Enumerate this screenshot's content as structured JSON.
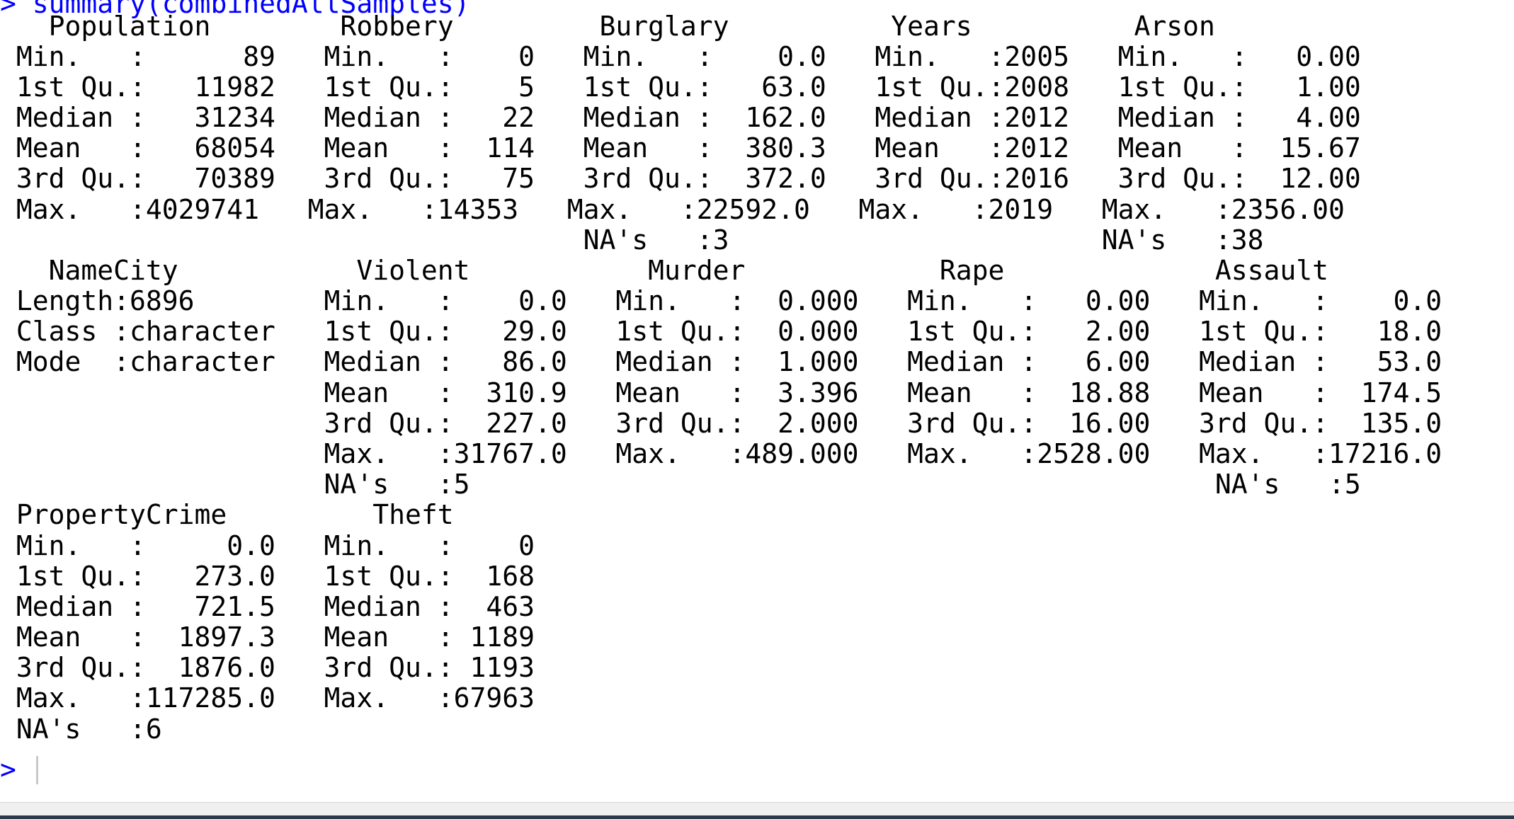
{
  "console": {
    "prompt_symbol": ">",
    "command": "summary(combinedAllSamples)",
    "output_lines": [
      "   Population        Robbery         Burglary          Years          Arson        ",
      " Min.   :      89   Min.   :    0   Min.   :    0.0   Min.   :2005   Min.   :   0.00  ",
      " 1st Qu.:   11982   1st Qu.:    5   1st Qu.:   63.0   1st Qu.:2008   1st Qu.:   1.00  ",
      " Median :   31234   Median :   22   Median :  162.0   Median :2012   Median :   4.00  ",
      " Mean   :   68054   Mean   :  114   Mean   :  380.3   Mean   :2012   Mean   :  15.67  ",
      " 3rd Qu.:   70389   3rd Qu.:   75   3rd Qu.:  372.0   3rd Qu.:2016   3rd Qu.:  12.00  ",
      " Max.   :4029741   Max.   :14353   Max.   :22592.0   Max.   :2019   Max.   :2356.00  ",
      "                                    NA's   :3                       NA's   :38       ",
      "   NameCity           Violent           Murder            Rape             Assault      ",
      " Length:6896        Min.   :    0.0   Min.   :  0.000   Min.   :   0.00   Min.   :    0.0  ",
      " Class :character   1st Qu.:   29.0   1st Qu.:  0.000   1st Qu.:   2.00   1st Qu.:   18.0  ",
      " Mode  :character   Median :   86.0   Median :  1.000   Median :   6.00   Median :   53.0  ",
      "                    Mean   :  310.9   Mean   :  3.396   Mean   :  18.88   Mean   :  174.5  ",
      "                    3rd Qu.:  227.0   3rd Qu.:  2.000   3rd Qu.:  16.00   3rd Qu.:  135.0  ",
      "                    Max.   :31767.0   Max.   :489.000   Max.   :2528.00   Max.   :17216.0  ",
      "                    NA's   :5                                              NA's   :5        ",
      " PropertyCrime         Theft       ",
      " Min.   :     0.0   Min.   :    0  ",
      " 1st Qu.:   273.0   1st Qu.:  168  ",
      " Median :   721.5   Median :  463  ",
      " Mean   :  1897.3   Mean   : 1189  ",
      " 3rd Qu.:  1876.0   3rd Qu.: 1193  ",
      " Max.   :117285.0   Max.   :67963  ",
      " NA's   :6                         "
    ]
  },
  "colors": {
    "command": "#0000ff",
    "output": "#000000",
    "background": "#ffffff",
    "cursor": "#c8c8c8"
  }
}
